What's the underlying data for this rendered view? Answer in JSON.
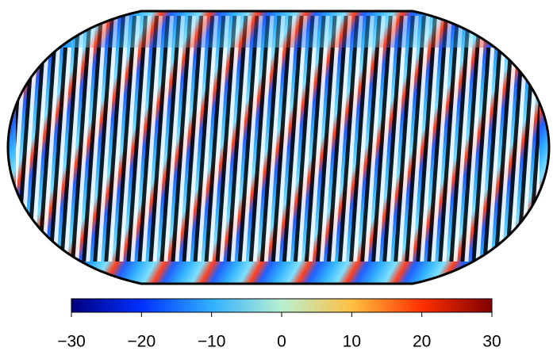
{
  "colorbar": {
    "lim": [
      -30,
      30
    ],
    "ticks": [
      {
        "value": -30,
        "label": "−30"
      },
      {
        "value": -20,
        "label": "−20"
      },
      {
        "value": -10,
        "label": "−10"
      },
      0,
      10,
      20,
      30
    ],
    "colors": [
      "#00007f",
      "#0030ff",
      "#30b0ff",
      "#b8f0d0",
      "#ffc040",
      "#ff3000",
      "#7f0000"
    ]
  }
}
